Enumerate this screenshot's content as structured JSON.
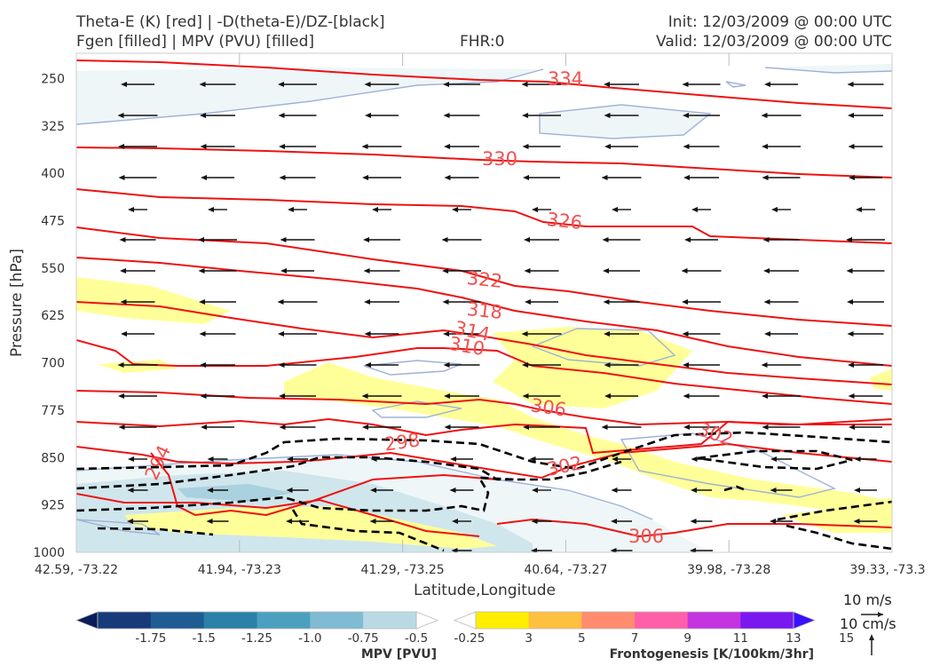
{
  "header": {
    "title_line1": "Theta-E (K) [red] | -D(theta-E)/DZ-[black]",
    "title_line2": "Fgen [filled] | MPV (PVU) [filled]",
    "fhr": "FHR:0",
    "init": "Init: 12/03/2009 @ 00:00 UTC",
    "valid": "Valid: 12/03/2009 @ 00:00 UTC"
  },
  "colors": {
    "theta_e": "#ee1111",
    "stability": "#000000",
    "mpv_outline": "#9fb2d6",
    "fgen_fill": "#ffff99",
    "mpv_fill_light": "#eef6f8",
    "mpv_fill_mid": "#cfe6ec",
    "mpv_fill_dark": "#a9d1de"
  },
  "chart_data": {
    "type": "contour",
    "xlabel": "Latitude,Longitude",
    "ylabel": "Pressure [hPa]",
    "x_ticks": [
      "42.59, -73.22",
      "41.94, -73.23",
      "41.29, -73.25",
      "40.64, -73.27",
      "39.98, -73.28",
      "39.33, -73.3"
    ],
    "y_ticks": [
      250,
      325,
      400,
      475,
      550,
      625,
      700,
      775,
      850,
      925,
      1000
    ],
    "ylim": [
      1000,
      210
    ],
    "grid": false,
    "theta_e_labels": [
      "334",
      "330",
      "326",
      "322",
      "318",
      "314",
      "310",
      "306",
      "302",
      "302",
      "306",
      "298",
      "294"
    ],
    "wind_direction": "easterly",
    "mpv_colorbar": {
      "title": "MPV [PVU]",
      "ticks": [
        "-1.75",
        "-1.5",
        "-1.25",
        "-1.0",
        "-0.75",
        "-0.5",
        "-0.25"
      ],
      "colors": [
        "#081d58",
        "#173a7a",
        "#1f5c93",
        "#2b81a8",
        "#4ba0c0",
        "#7fbbd3",
        "#b9dae4",
        "#ffffff"
      ]
    },
    "fgen_colorbar": {
      "title": "Frontogenesis [K/100km/3hr]",
      "ticks": [
        "3",
        "5",
        "7",
        "9",
        "11",
        "13",
        "15"
      ],
      "colors": [
        "#ffffff",
        "#ffee00",
        "#ffc040",
        "#ff8c6e",
        "#ff5fa8",
        "#c434e0",
        "#7a18f0",
        "#3a10ff"
      ]
    },
    "wind_key": {
      "horizontal": "10 m/s",
      "vertical": "10 cm/s"
    }
  }
}
